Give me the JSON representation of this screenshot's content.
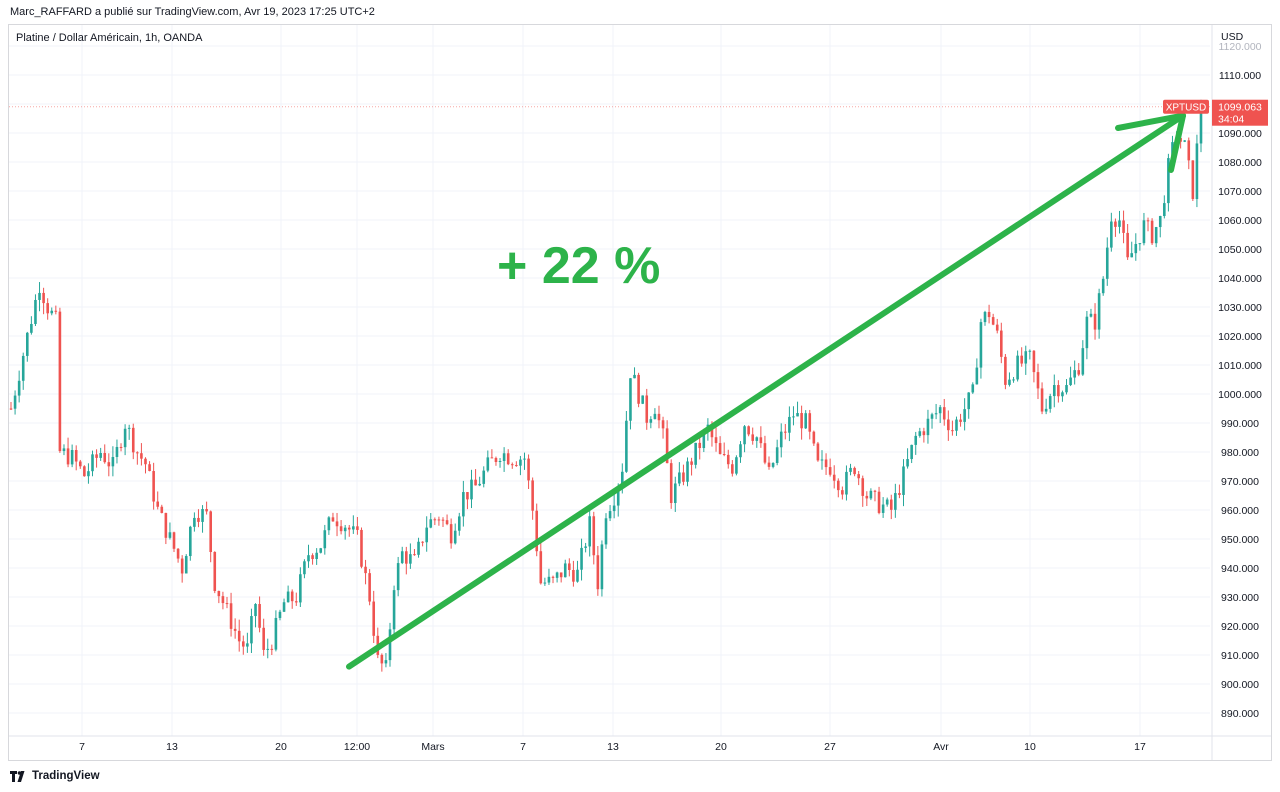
{
  "header": {
    "publish_info": "Marc_RAFFARD a publié sur TradingView.com, Avr 19, 2023 17:25 UTC+2",
    "symbol_title": "Platine / Dollar Américain, 1h, OANDA"
  },
  "annotation": {
    "gain_text": "+ 22 %",
    "color": "#2db34a"
  },
  "footer": {
    "brand": "TradingView"
  },
  "colors": {
    "up": "#26a69a",
    "down": "#ef5350",
    "grid": "#f0f3fa",
    "price_tag": "#ef5350",
    "arrow": "#2db34a"
  },
  "chart_data": {
    "type": "candlestick",
    "symbol": "XPTUSD",
    "currency_label": "USD",
    "interval": "1h",
    "source": "OANDA",
    "ylim": [
      880,
      1125
    ],
    "y_ticks": [
      890,
      900,
      910,
      920,
      930,
      940,
      950,
      960,
      970,
      980,
      990,
      1000,
      1010,
      1020,
      1030,
      1040,
      1050,
      1060,
      1070,
      1080,
      1090,
      1100,
      1110,
      1120
    ],
    "y_tick_labels": [
      "890.000",
      "900.000",
      "910.000",
      "920.000",
      "930.000",
      "940.000",
      "950.000",
      "960.000",
      "970.000",
      "980.000",
      "990.000",
      "1000.000",
      "1010.000",
      "1020.000",
      "1030.000",
      "1040.000",
      "1050.000",
      "1060.000",
      "1070.000",
      "1080.000",
      "1090.000",
      "1100.000",
      "1110.000",
      "1120.000"
    ],
    "x_ticks": [
      "7",
      "13",
      "20",
      "12:00",
      "Mars",
      "7",
      "13",
      "20",
      "27",
      "Avr",
      "10",
      "17"
    ],
    "last_price": {
      "label": "XPTUSD",
      "value": "1099.063",
      "countdown": "34:04"
    },
    "trend_arrow": {
      "from_price": 906,
      "to_price": 1096
    },
    "price_path": [
      {
        "i": 0,
        "price": 995
      },
      {
        "i": 4,
        "price": 1020
      },
      {
        "i": 7,
        "price": 1038
      },
      {
        "i": 9,
        "price": 1030
      },
      {
        "i": 11,
        "price": 1025
      },
      {
        "i": 12,
        "price": 980
      },
      {
        "i": 15,
        "price": 978
      },
      {
        "i": 18,
        "price": 972
      },
      {
        "i": 22,
        "price": 980
      },
      {
        "i": 25,
        "price": 975
      },
      {
        "i": 28,
        "price": 990
      },
      {
        "i": 31,
        "price": 980
      },
      {
        "i": 33,
        "price": 976
      },
      {
        "i": 36,
        "price": 960
      },
      {
        "i": 39,
        "price": 950
      },
      {
        "i": 42,
        "price": 940
      },
      {
        "i": 45,
        "price": 960
      },
      {
        "i": 48,
        "price": 958
      },
      {
        "i": 50,
        "price": 935
      },
      {
        "i": 53,
        "price": 925
      },
      {
        "i": 56,
        "price": 915
      },
      {
        "i": 58,
        "price": 912
      },
      {
        "i": 60,
        "price": 928
      },
      {
        "i": 62,
        "price": 910
      },
      {
        "i": 64,
        "price": 915
      },
      {
        "i": 67,
        "price": 928
      },
      {
        "i": 70,
        "price": 930
      },
      {
        "i": 73,
        "price": 945
      },
      {
        "i": 76,
        "price": 948
      },
      {
        "i": 79,
        "price": 958
      },
      {
        "i": 82,
        "price": 955
      },
      {
        "i": 85,
        "price": 950
      },
      {
        "i": 88,
        "price": 930
      },
      {
        "i": 90,
        "price": 908
      },
      {
        "i": 92,
        "price": 905
      },
      {
        "i": 94,
        "price": 935
      },
      {
        "i": 96,
        "price": 945
      },
      {
        "i": 99,
        "price": 942
      },
      {
        "i": 102,
        "price": 955
      },
      {
        "i": 105,
        "price": 958
      },
      {
        "i": 108,
        "price": 952
      },
      {
        "i": 111,
        "price": 965
      },
      {
        "i": 114,
        "price": 968
      },
      {
        "i": 117,
        "price": 975
      },
      {
        "i": 120,
        "price": 980
      },
      {
        "i": 123,
        "price": 978
      },
      {
        "i": 126,
        "price": 978
      },
      {
        "i": 128,
        "price": 960
      },
      {
        "i": 130,
        "price": 935
      },
      {
        "i": 133,
        "price": 935
      },
      {
        "i": 136,
        "price": 940
      },
      {
        "i": 139,
        "price": 938
      },
      {
        "i": 142,
        "price": 955
      },
      {
        "i": 144,
        "price": 935
      },
      {
        "i": 146,
        "price": 960
      },
      {
        "i": 148,
        "price": 965
      },
      {
        "i": 150,
        "price": 975
      },
      {
        "i": 152,
        "price": 1008
      },
      {
        "i": 154,
        "price": 1000
      },
      {
        "i": 156,
        "price": 992
      },
      {
        "i": 158,
        "price": 996
      },
      {
        "i": 160,
        "price": 985
      },
      {
        "i": 162,
        "price": 965
      },
      {
        "i": 165,
        "price": 972
      },
      {
        "i": 168,
        "price": 980
      },
      {
        "i": 171,
        "price": 988
      },
      {
        "i": 174,
        "price": 978
      },
      {
        "i": 177,
        "price": 975
      },
      {
        "i": 180,
        "price": 990
      },
      {
        "i": 183,
        "price": 985
      },
      {
        "i": 186,
        "price": 972
      },
      {
        "i": 189,
        "price": 985
      },
      {
        "i": 192,
        "price": 993
      },
      {
        "i": 195,
        "price": 990
      },
      {
        "i": 198,
        "price": 975
      },
      {
        "i": 201,
        "price": 975
      },
      {
        "i": 204,
        "price": 968
      },
      {
        "i": 207,
        "price": 975
      },
      {
        "i": 210,
        "price": 965
      },
      {
        "i": 213,
        "price": 962
      },
      {
        "i": 216,
        "price": 960
      },
      {
        "i": 219,
        "price": 972
      },
      {
        "i": 222,
        "price": 985
      },
      {
        "i": 225,
        "price": 990
      },
      {
        "i": 228,
        "price": 995
      },
      {
        "i": 231,
        "price": 988
      },
      {
        "i": 234,
        "price": 995
      },
      {
        "i": 236,
        "price": 1000
      },
      {
        "i": 238,
        "price": 1025
      },
      {
        "i": 240,
        "price": 1028
      },
      {
        "i": 242,
        "price": 1020
      },
      {
        "i": 244,
        "price": 1005
      },
      {
        "i": 247,
        "price": 1010
      },
      {
        "i": 250,
        "price": 1012
      },
      {
        "i": 253,
        "price": 995
      },
      {
        "i": 256,
        "price": 1003
      },
      {
        "i": 259,
        "price": 1002
      },
      {
        "i": 262,
        "price": 1010
      },
      {
        "i": 264,
        "price": 1025
      },
      {
        "i": 266,
        "price": 1025
      },
      {
        "i": 268,
        "price": 1040
      },
      {
        "i": 270,
        "price": 1062
      },
      {
        "i": 272,
        "price": 1060
      },
      {
        "i": 274,
        "price": 1045
      },
      {
        "i": 276,
        "price": 1052
      },
      {
        "i": 278,
        "price": 1058
      },
      {
        "i": 280,
        "price": 1055
      },
      {
        "i": 282,
        "price": 1060
      },
      {
        "i": 284,
        "price": 1078
      },
      {
        "i": 286,
        "price": 1090
      },
      {
        "i": 288,
        "price": 1085
      },
      {
        "i": 290,
        "price": 1070
      },
      {
        "i": 292,
        "price": 1099
      }
    ]
  }
}
